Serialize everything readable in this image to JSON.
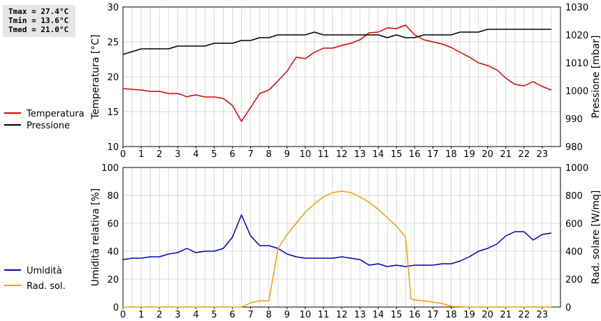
{
  "stats": {
    "tmax": "Tmax = 27.4°C",
    "tmin": "Tmin = 13.6°C",
    "tmed": "Tmed = 21.0°C"
  },
  "colors": {
    "temperature": "#dd0000",
    "pressure": "#000000",
    "humidity": "#0000bb",
    "radiation": "#f0a000",
    "grid": "#d8d8d8"
  },
  "chart_data": [
    {
      "type": "line",
      "ylabel": "Temperatura [°C]",
      "y2label": "Pressione [mbar]",
      "xlim": [
        0,
        24
      ],
      "xticks": [
        "0",
        "1",
        "2",
        "3",
        "4",
        "5",
        "6",
        "7",
        "8",
        "9",
        "10",
        "11",
        "12",
        "13",
        "14",
        "15",
        "16",
        "17",
        "18",
        "19",
        "20",
        "21",
        "22",
        "23"
      ],
      "ylim": [
        10,
        30
      ],
      "yticks": [
        "10",
        "15",
        "20",
        "25",
        "30"
      ],
      "y2lim": [
        980,
        1030
      ],
      "y2ticks": [
        "980",
        "990",
        "1000",
        "1010",
        "1020",
        "1030"
      ],
      "grid": true,
      "legend_position": "left",
      "series": [
        {
          "name": "Temperatura",
          "axis": "left",
          "x": [
            0,
            0.5,
            1,
            1.5,
            2,
            2.5,
            3,
            3.25,
            3.5,
            3.75,
            4,
            4.5,
            5,
            5.5,
            6,
            6.5,
            7,
            7.5,
            8,
            8.5,
            9,
            9.5,
            10,
            10.5,
            11,
            11.5,
            12,
            12.5,
            13,
            13.5,
            14,
            14.5,
            15,
            15.5,
            16,
            16.5,
            17,
            17.5,
            18,
            18.5,
            19,
            19.5,
            20,
            20.5,
            21,
            21.5,
            22,
            22.5,
            23,
            23.5
          ],
          "y": [
            18.3,
            18.2,
            18.1,
            17.9,
            17.9,
            17.6,
            17.6,
            17.4,
            17.1,
            17.3,
            17.4,
            17.1,
            17.1,
            16.9,
            15.9,
            13.6,
            15.6,
            17.6,
            18.1,
            19.4,
            20.8,
            22.8,
            22.6,
            23.5,
            24.1,
            24.1,
            24.5,
            24.8,
            25.3,
            26.3,
            26.4,
            27.0,
            26.9,
            27.4,
            26.0,
            25.3,
            25.0,
            24.7,
            24.2,
            23.5,
            22.8,
            22.0,
            21.6,
            21.0,
            19.8,
            18.9,
            18.7,
            19.3,
            18.6,
            18.1
          ]
        },
        {
          "name": "Pressione",
          "axis": "right",
          "x": [
            0,
            0.5,
            1,
            1.5,
            2,
            2.5,
            3,
            3.5,
            4,
            4.5,
            5,
            5.5,
            6,
            6.5,
            7,
            7.5,
            8,
            8.5,
            9,
            9.5,
            10,
            10.5,
            11,
            11.5,
            12,
            12.5,
            13,
            13.5,
            14,
            14.5,
            15,
            15.5,
            16,
            16.5,
            17,
            17.5,
            18,
            18.5,
            19,
            19.5,
            20,
            20.5,
            21,
            21.5,
            22,
            22.5,
            23,
            23.5
          ],
          "y": [
            1013,
            1014,
            1015,
            1015,
            1015,
            1015,
            1016,
            1016,
            1016,
            1016,
            1017,
            1017,
            1017,
            1018,
            1018,
            1019,
            1019,
            1020,
            1020,
            1020,
            1020,
            1021,
            1020,
            1020,
            1020,
            1020,
            1020,
            1020,
            1020,
            1019,
            1020,
            1019,
            1019,
            1020,
            1020,
            1020,
            1020,
            1021,
            1021,
            1021,
            1022,
            1022,
            1022,
            1022,
            1022,
            1022,
            1022,
            1022
          ]
        }
      ]
    },
    {
      "type": "line",
      "ylabel": "Umidità relativa [%]",
      "y2label": "Rad. solare [W/mq]",
      "xlim": [
        0,
        24
      ],
      "xticks": [
        "0",
        "1",
        "2",
        "3",
        "4",
        "5",
        "6",
        "7",
        "8",
        "9",
        "10",
        "11",
        "12",
        "13",
        "14",
        "15",
        "16",
        "17",
        "18",
        "19",
        "20",
        "21",
        "22",
        "23"
      ],
      "ylim": [
        0,
        100
      ],
      "yticks": [
        "0",
        "20",
        "40",
        "60",
        "80",
        "100"
      ],
      "y2lim": [
        0,
        1000
      ],
      "y2ticks": [
        "0",
        "200",
        "400",
        "600",
        "800",
        "1000"
      ],
      "grid": true,
      "legend_position": "left",
      "series": [
        {
          "name": "Umidità",
          "axis": "left",
          "x": [
            0,
            0.5,
            1,
            1.5,
            2,
            2.5,
            3,
            3.5,
            4,
            4.5,
            5,
            5.5,
            6,
            6.5,
            7,
            7.5,
            8,
            8.5,
            9,
            9.5,
            10,
            10.5,
            11,
            11.5,
            12,
            12.5,
            13,
            13.5,
            14,
            14.5,
            15,
            15.5,
            16,
            16.5,
            17,
            17.5,
            18,
            18.5,
            19,
            19.5,
            20,
            20.5,
            21,
            21.5,
            22,
            22.5,
            23,
            23.5
          ],
          "y": [
            34,
            35,
            35,
            36,
            36,
            38,
            39,
            42,
            39,
            40,
            40,
            42,
            50,
            66,
            51,
            44,
            44,
            42,
            38,
            36,
            35,
            35,
            35,
            35,
            36,
            35,
            34,
            30,
            31,
            29,
            30,
            29,
            30,
            30,
            30,
            31,
            31,
            33,
            36,
            40,
            42,
            45,
            51,
            54,
            54,
            48,
            52,
            53
          ]
        },
        {
          "name": "Rad. sol.",
          "axis": "right",
          "x": [
            0,
            1,
            2,
            3,
            4,
            5,
            6,
            6.5,
            7,
            7.5,
            8,
            8.5,
            9,
            9.5,
            10,
            10.5,
            11,
            11.5,
            12,
            12.5,
            13,
            13.5,
            14,
            14.5,
            15,
            15.5,
            15.8,
            16,
            16.5,
            17,
            17.5,
            18,
            19,
            20,
            21,
            22,
            23,
            23.5
          ],
          "y": [
            0,
            0,
            0,
            0,
            0,
            0,
            0,
            0,
            30,
            45,
            45,
            420,
            520,
            600,
            680,
            740,
            790,
            820,
            830,
            820,
            790,
            750,
            700,
            640,
            580,
            500,
            60,
            50,
            45,
            35,
            25,
            5,
            0,
            0,
            0,
            0,
            0,
            0
          ]
        }
      ]
    }
  ]
}
